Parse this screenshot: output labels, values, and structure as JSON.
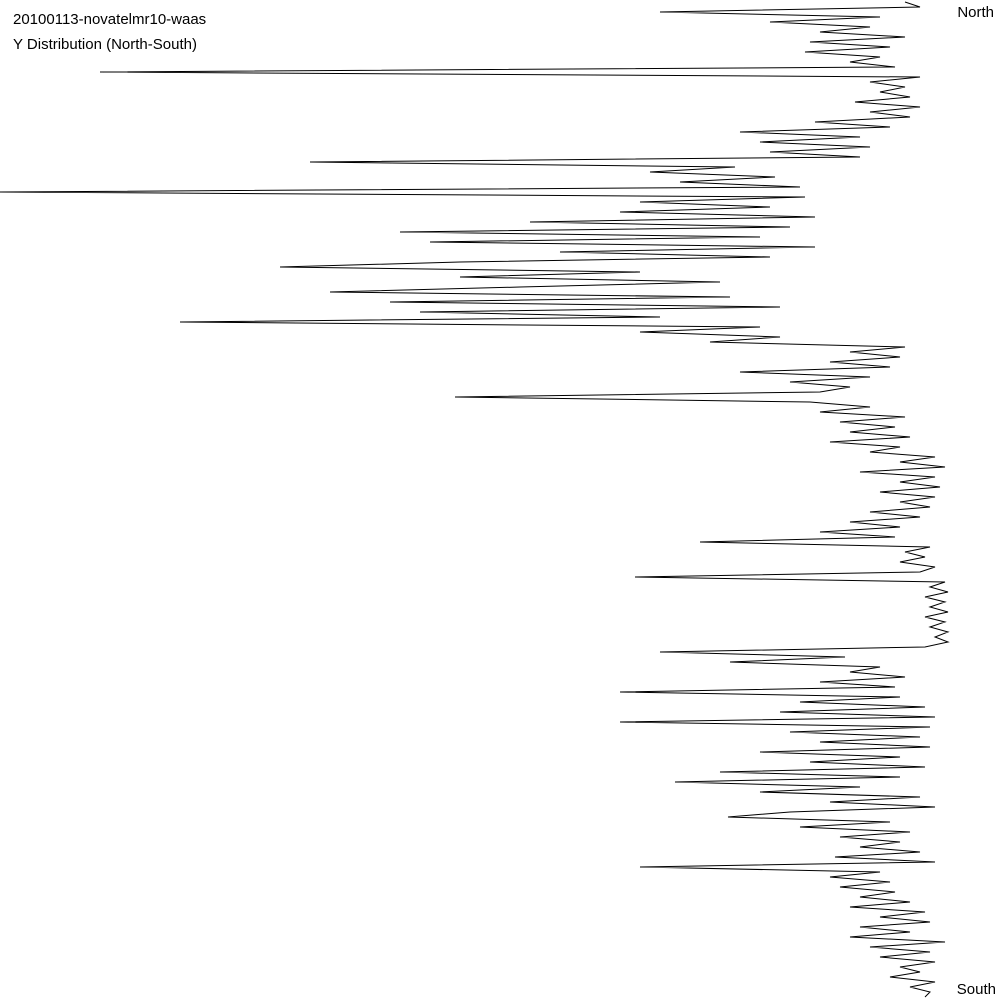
{
  "chart_data": {
    "type": "line",
    "title": "20100113-novatelmr10-waas",
    "subtitle": "Y Distribution (North-South)",
    "top_label": "North",
    "bottom_label": "South",
    "color": "#000000",
    "xlim": [
      0,
      1000
    ],
    "values": [
      905,
      920,
      660,
      880,
      770,
      870,
      820,
      905,
      810,
      890,
      805,
      880,
      850,
      895,
      100,
      920,
      870,
      905,
      880,
      910,
      855,
      920,
      870,
      910,
      815,
      890,
      740,
      860,
      760,
      870,
      770,
      860,
      310,
      735,
      650,
      775,
      680,
      800,
      0,
      805,
      640,
      770,
      620,
      815,
      530,
      790,
      400,
      760,
      430,
      815,
      560,
      770,
      460,
      280,
      640,
      460,
      720,
      520,
      330,
      730,
      390,
      780,
      420,
      660,
      180,
      760,
      640,
      780,
      710,
      905,
      850,
      900,
      830,
      890,
      740,
      870,
      790,
      850,
      820,
      455,
      810,
      870,
      820,
      905,
      840,
      895,
      850,
      910,
      830,
      900,
      870,
      935,
      900,
      945,
      860,
      935,
      900,
      940,
      880,
      935,
      900,
      930,
      870,
      920,
      850,
      900,
      820,
      895,
      700,
      930,
      905,
      925,
      900,
      935,
      920,
      635,
      945,
      930,
      948,
      925,
      945,
      930,
      948,
      925,
      945,
      930,
      948,
      935,
      948,
      925,
      660,
      845,
      730,
      880,
      850,
      905,
      820,
      895,
      620,
      900,
      800,
      925,
      780,
      935,
      620,
      930,
      790,
      920,
      820,
      930,
      760,
      900,
      810,
      925,
      720,
      900,
      675,
      860,
      760,
      920,
      830,
      935,
      790,
      728,
      890,
      800,
      910,
      840,
      900,
      860,
      920,
      835,
      935,
      640,
      880,
      830,
      890,
      840,
      895,
      860,
      910,
      850,
      925,
      880,
      930,
      860,
      910,
      850,
      945,
      870,
      930,
      880,
      935,
      900,
      920,
      890,
      935,
      910,
      930,
      925
    ]
  }
}
